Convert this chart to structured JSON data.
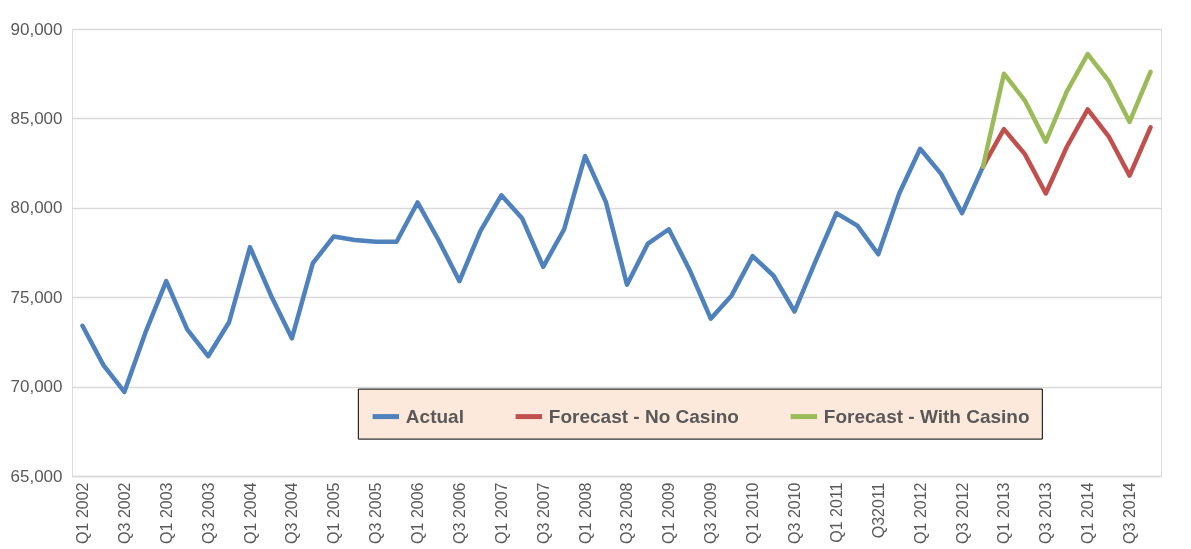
{
  "chart_data": {
    "type": "line",
    "categories": [
      "Q1 2002",
      null,
      "Q3 2002",
      null,
      "Q1 2003",
      null,
      "Q3 2003",
      null,
      "Q1 2004",
      null,
      "Q3 2004",
      null,
      "Q1 2005",
      null,
      "Q3 2005",
      null,
      "Q1 2006",
      null,
      "Q3 2006",
      null,
      "Q1 2007",
      null,
      "Q3 2007",
      null,
      "Q1 2008",
      null,
      "Q3 2008",
      null,
      "Q1 2009",
      null,
      "Q3 2009",
      null,
      "Q1 2010",
      null,
      "Q3 2010",
      null,
      "Q1 2011",
      null,
      "Q32011",
      null,
      "Q1 2012",
      null,
      "Q3 2012",
      null,
      "Q1 2013",
      null,
      "Q3 2013",
      null,
      "Q1 2014",
      null,
      "Q3 2014",
      null
    ],
    "series": [
      {
        "name": "Actual",
        "color": "#4f81bd",
        "values": [
          73400,
          71200,
          69700,
          73000,
          75900,
          73200,
          71700,
          73600,
          77800,
          75100,
          72700,
          76900,
          78400,
          78200,
          78100,
          78100,
          80300,
          78200,
          75900,
          78700,
          80700,
          79400,
          76700,
          78800,
          82900,
          80300,
          75700,
          78000,
          78800,
          76500,
          73800,
          75100,
          77300,
          76200,
          74200,
          77000,
          79700,
          79000,
          77400,
          80800,
          83300,
          81900,
          79700,
          82300,
          null,
          null,
          null,
          null,
          null,
          null,
          null,
          null
        ]
      },
      {
        "name": "Forecast - No Casino",
        "color": "#c0504d",
        "values": [
          null,
          null,
          null,
          null,
          null,
          null,
          null,
          null,
          null,
          null,
          null,
          null,
          null,
          null,
          null,
          null,
          null,
          null,
          null,
          null,
          null,
          null,
          null,
          null,
          null,
          null,
          null,
          null,
          null,
          null,
          null,
          null,
          null,
          null,
          null,
          null,
          null,
          null,
          null,
          null,
          null,
          null,
          null,
          82300,
          84400,
          83000,
          80800,
          83400,
          85500,
          84000,
          81800,
          84500
        ]
      },
      {
        "name": "Forecast - With Casino",
        "color": "#9bbb59",
        "values": [
          null,
          null,
          null,
          null,
          null,
          null,
          null,
          null,
          null,
          null,
          null,
          null,
          null,
          null,
          null,
          null,
          null,
          null,
          null,
          null,
          null,
          null,
          null,
          null,
          null,
          null,
          null,
          null,
          null,
          null,
          null,
          null,
          null,
          null,
          null,
          null,
          null,
          null,
          null,
          null,
          null,
          null,
          null,
          82300,
          87500,
          86000,
          83700,
          86500,
          88600,
          87100,
          84800,
          87600
        ]
      }
    ],
    "ylim": [
      65000,
      90000
    ],
    "yticks": [
      {
        "value": 65000,
        "label": "65,000"
      },
      {
        "value": 70000,
        "label": "70,000"
      },
      {
        "value": 75000,
        "label": "75,000"
      },
      {
        "value": 80000,
        "label": "80,000"
      },
      {
        "value": 85000,
        "label": "85,000"
      },
      {
        "value": 90000,
        "label": "90,000"
      }
    ],
    "grid": "y",
    "legend": "bottom",
    "marker": "none",
    "line_style": "solid"
  }
}
